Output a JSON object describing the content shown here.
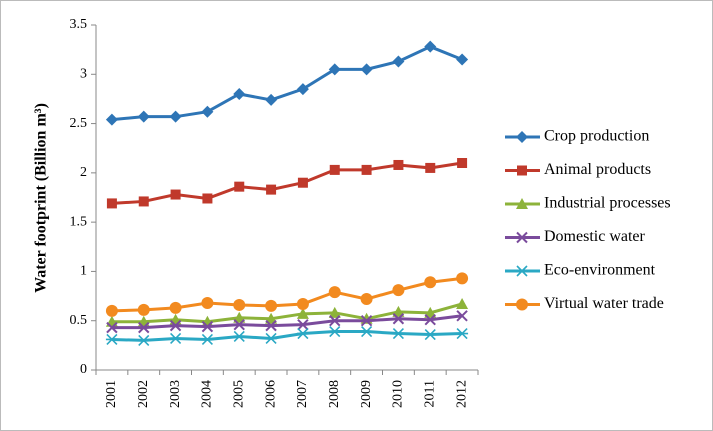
{
  "chart_data": {
    "type": "line",
    "y_label": "Water footprint (Billion m³)",
    "categories": [
      "2001",
      "2002",
      "2003",
      "2004",
      "2005",
      "2006",
      "2007",
      "2008",
      "2009",
      "2010",
      "2011",
      "2012"
    ],
    "series": [
      {
        "name": "Crop production",
        "color": "#2e75b6",
        "marker": "diamond",
        "values": [
          2.54,
          2.57,
          2.57,
          2.62,
          2.8,
          2.74,
          2.85,
          3.05,
          3.05,
          3.13,
          3.28,
          3.15
        ]
      },
      {
        "name": "Animal products",
        "color": "#c0392b",
        "marker": "square",
        "values": [
          1.69,
          1.71,
          1.78,
          1.74,
          1.86,
          1.83,
          1.9,
          2.03,
          2.03,
          2.08,
          2.05,
          2.1
        ]
      },
      {
        "name": "Industrial processes",
        "color": "#8db33a",
        "marker": "triangle",
        "values": [
          0.49,
          0.49,
          0.51,
          0.49,
          0.53,
          0.52,
          0.57,
          0.58,
          0.52,
          0.59,
          0.58,
          0.67
        ]
      },
      {
        "name": "Domestic water",
        "color": "#7a4b9c",
        "marker": "x",
        "values": [
          0.43,
          0.43,
          0.45,
          0.44,
          0.46,
          0.45,
          0.46,
          0.5,
          0.5,
          0.52,
          0.51,
          0.55
        ]
      },
      {
        "name": "Eco-environment",
        "color": "#2aa8c4",
        "marker": "star",
        "values": [
          0.31,
          0.3,
          0.32,
          0.31,
          0.34,
          0.32,
          0.37,
          0.39,
          0.39,
          0.37,
          0.36,
          0.37
        ]
      },
      {
        "name": "Virtual water trade",
        "color": "#f28a1f",
        "marker": "circle",
        "values": [
          0.6,
          0.61,
          0.63,
          0.68,
          0.66,
          0.65,
          0.67,
          0.79,
          0.72,
          0.81,
          0.89,
          0.93
        ]
      }
    ],
    "ylim": [
      0,
      3.5
    ],
    "yticks": [
      0,
      0.5,
      1,
      1.5,
      2,
      2.5,
      3,
      3.5
    ],
    "grid": false,
    "legend": "right"
  }
}
